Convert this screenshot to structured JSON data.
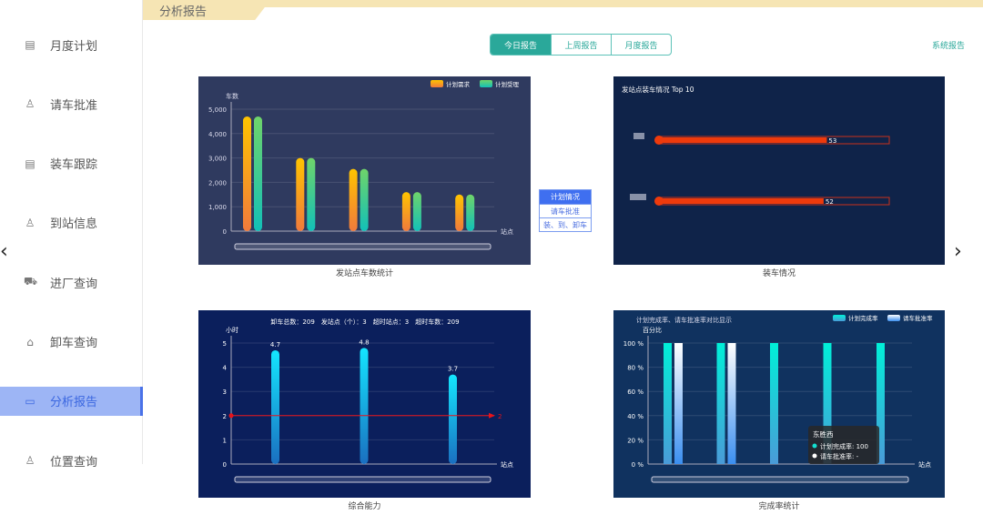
{
  "sidebar": {
    "items": [
      {
        "label": "月度计划",
        "icon": "calendar-icon"
      },
      {
        "label": "请车批准",
        "icon": "user-stamp-icon"
      },
      {
        "label": "装车跟踪",
        "icon": "document-icon"
      },
      {
        "label": "到站信息",
        "icon": "user-location-icon"
      },
      {
        "label": "进厂查询",
        "icon": "truck-icon"
      },
      {
        "label": "卸车查询",
        "icon": "lock-box-icon"
      },
      {
        "label": "分析报告",
        "icon": "monitor-icon",
        "active": true
      },
      {
        "label": "位置查询",
        "icon": "person-icon"
      }
    ]
  },
  "header": {
    "title": "分析报告",
    "tabs": [
      "今日报告",
      "上周报告",
      "月度报告"
    ],
    "system_report": "系统报告"
  },
  "mini_menu": [
    "计划情况",
    "请车批准",
    "装、到、卸车"
  ],
  "colors": {
    "accent": "#2aa89a",
    "panel1": "#2f3a5f",
    "panel2": "#0f2349",
    "panel3": "#0b1f5c",
    "panel4": "#10325f"
  },
  "chart_data": [
    {
      "type": "bar",
      "caption": "发站点车数统计",
      "ylabel": "车数",
      "xlabel": "站点",
      "ylim": [
        0,
        5000
      ],
      "yticks": [
        "0",
        "1,000",
        "2,000",
        "3,000",
        "4,000",
        "5,000"
      ],
      "series": [
        {
          "name": "计划需求",
          "values": [
            4700,
            3000,
            2550,
            1600,
            1500
          ]
        },
        {
          "name": "计划受理",
          "values": [
            4700,
            3000,
            2550,
            1600,
            1500
          ]
        }
      ]
    },
    {
      "type": "bar",
      "caption": "装车情况",
      "title": "发站点装车情况 Top 10",
      "orientation": "horizontal",
      "values": [
        53,
        52
      ]
    },
    {
      "type": "bar",
      "caption": "综合能力",
      "ylabel": "小时",
      "xlabel": "站点",
      "ylim": [
        0,
        5
      ],
      "yticks": [
        "0",
        "1",
        "2",
        "3",
        "4",
        "5"
      ],
      "summary": "卸车总数：209　发站点（个）：3　超时站点：3　超时车数：209",
      "values": [
        4.7,
        4.8,
        3.7
      ],
      "labels": [
        "4.7",
        "4.8",
        "3.7"
      ],
      "markline": {
        "value": 2,
        "label": "2"
      }
    },
    {
      "type": "bar",
      "caption": "完成率统计",
      "title": "计划完成率、请车批准率对比显示",
      "ylabel": "百分比",
      "xlabel": "站点",
      "ylim": [
        0,
        100
      ],
      "yticks": [
        "0 %",
        "20 %",
        "40 %",
        "60 %",
        "80 %",
        "100 %"
      ],
      "series": [
        {
          "name": "计划完成率",
          "values": [
            100,
            100,
            100,
            100,
            100
          ]
        },
        {
          "name": "请车批准率",
          "values": [
            100,
            100,
            null,
            null,
            null
          ]
        }
      ],
      "tooltip": {
        "title": "东胜西",
        "rows": [
          "计划完成率: 100",
          "请车批准率: -"
        ]
      }
    }
  ]
}
